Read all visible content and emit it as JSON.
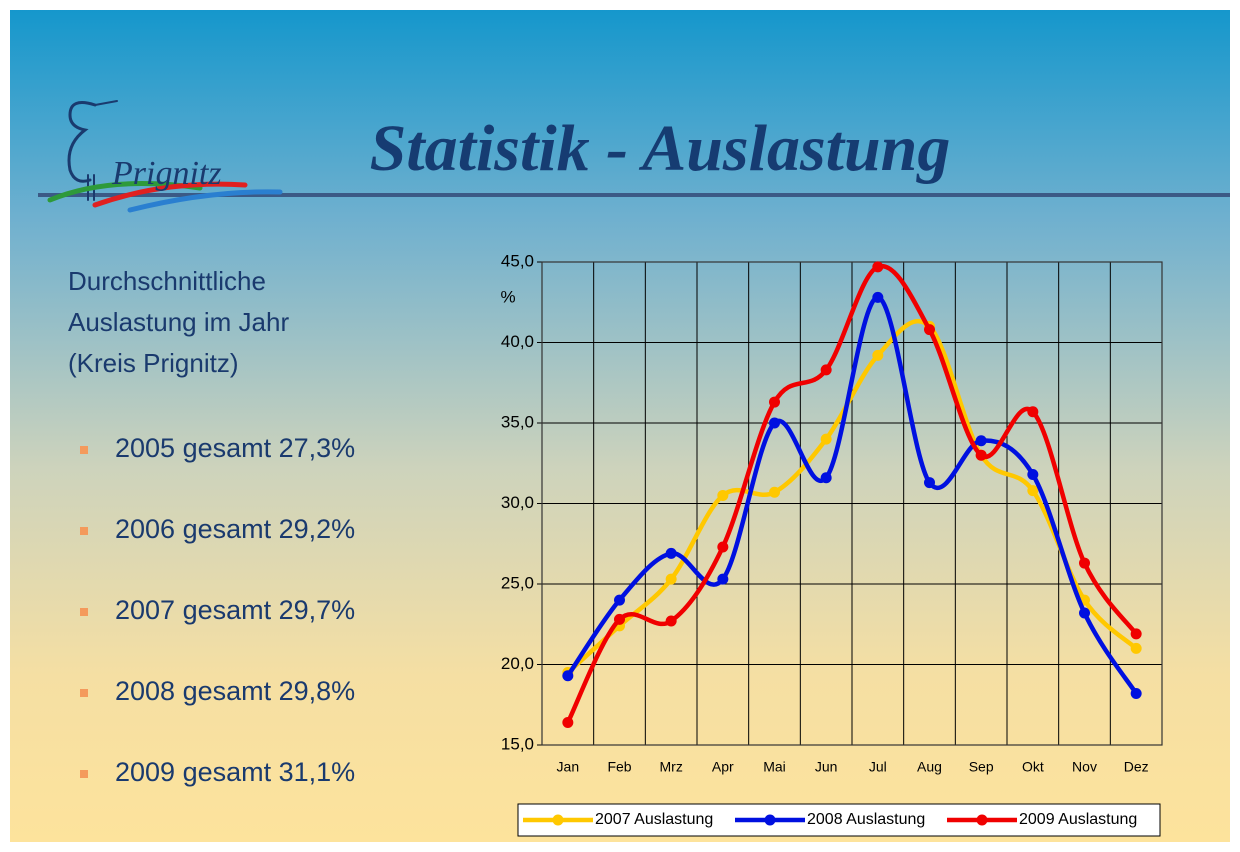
{
  "title": "Statistik -  Auslastung",
  "logo_text": "Prignitz",
  "intro": [
    "Durchschnittliche",
    "Auslastung im Jahr",
    "(Kreis Prignitz)"
  ],
  "bullets": [
    "2005 gesamt  27,3%",
    "2006 gesamt  29,2%",
    "2007 gesamt  29,7%",
    "2008 gesamt  29,8%",
    "2009 gesamt  31,1%"
  ],
  "chart_data": {
    "type": "line",
    "y_label": "%",
    "categories": [
      "Jan",
      "Feb",
      "Mrz",
      "Apr",
      "Mai",
      "Jun",
      "Jul",
      "Aug",
      "Sep",
      "Okt",
      "Nov",
      "Dez"
    ],
    "series": [
      {
        "name": "2007 Auslastung",
        "color": "#ffc800",
        "values": [
          19.5,
          22.4,
          25.3,
          30.5,
          30.7,
          34.0,
          39.2,
          41.0,
          33.0,
          30.8,
          24.0,
          21.0
        ]
      },
      {
        "name": "2008 Auslastung",
        "color": "#0010e0",
        "values": [
          19.3,
          24.0,
          26.9,
          25.3,
          35.0,
          31.6,
          42.8,
          31.3,
          33.9,
          31.8,
          23.2,
          18.2
        ]
      },
      {
        "name": "2009 Auslastung",
        "color": "#f00000",
        "values": [
          16.4,
          22.8,
          22.7,
          27.3,
          36.3,
          38.3,
          44.7,
          40.8,
          33.0,
          35.7,
          26.3,
          21.9
        ]
      }
    ],
    "ylim": [
      15,
      45
    ],
    "yticks": [
      {
        "value": 15,
        "label": "15,0"
      },
      {
        "value": 20,
        "label": "20,0"
      },
      {
        "value": 25,
        "label": "25,0"
      },
      {
        "value": 30,
        "label": "30,0"
      },
      {
        "value": 35,
        "label": "35,0"
      },
      {
        "value": 40,
        "label": "40,0"
      },
      {
        "value": 45,
        "label": "45,0"
      }
    ],
    "grid": true,
    "legend": "bottom"
  }
}
